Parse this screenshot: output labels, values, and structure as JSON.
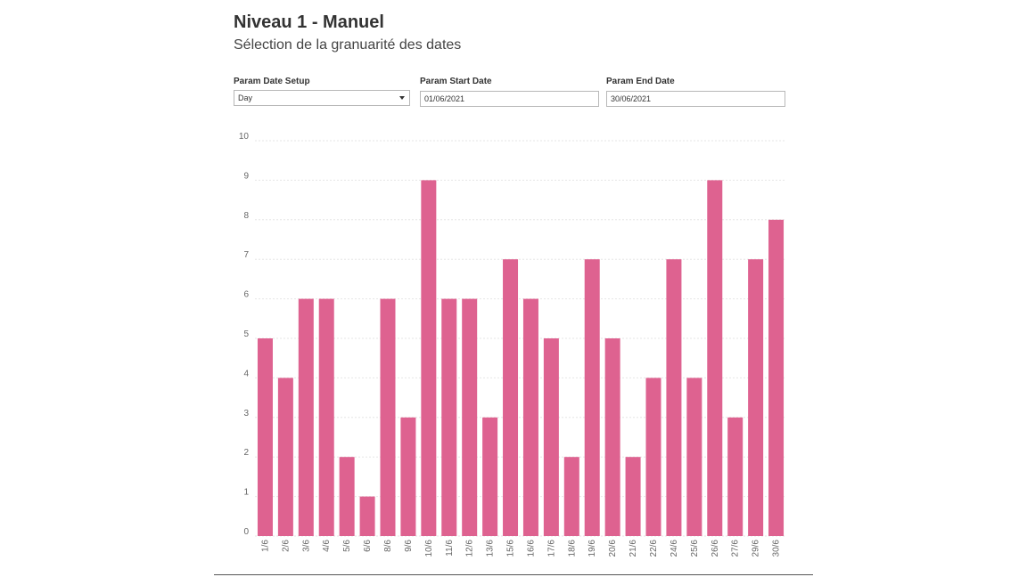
{
  "header": {
    "title": "Niveau 1 - Manuel",
    "subtitle": "Sélection de la granuarité des dates"
  },
  "params": {
    "date_setup": {
      "label": "Param Date Setup",
      "value": "Day"
    },
    "start_date": {
      "label": "Param Start Date",
      "value": "01/06/2021"
    },
    "end_date": {
      "label": "Param End Date",
      "value": "30/06/2021"
    }
  },
  "colors": {
    "bar": "#de6290",
    "gridline": "#e6e6e6"
  },
  "icons": {
    "dropdown": "chevron-down-icon"
  },
  "chart_data": {
    "type": "bar",
    "categories": [
      "1/6",
      "2/6",
      "3/6",
      "4/6",
      "5/6",
      "6/6",
      "8/6",
      "9/6",
      "10/6",
      "11/6",
      "12/6",
      "13/6",
      "15/6",
      "16/6",
      "17/6",
      "18/6",
      "19/6",
      "20/6",
      "21/6",
      "22/6",
      "24/6",
      "25/6",
      "26/6",
      "27/6",
      "29/6",
      "30/6"
    ],
    "values": [
      5,
      4,
      6,
      6,
      2,
      1,
      6,
      3,
      9,
      6,
      6,
      3,
      7,
      6,
      5,
      2,
      7,
      5,
      2,
      4,
      7,
      4,
      9,
      3,
      7,
      8
    ],
    "ylim": [
      0,
      10
    ],
    "yticks": [
      "0",
      "1",
      "2",
      "3",
      "4",
      "5",
      "6",
      "7",
      "8",
      "9",
      "10"
    ],
    "grid": true,
    "xlabel": "",
    "ylabel": ""
  }
}
